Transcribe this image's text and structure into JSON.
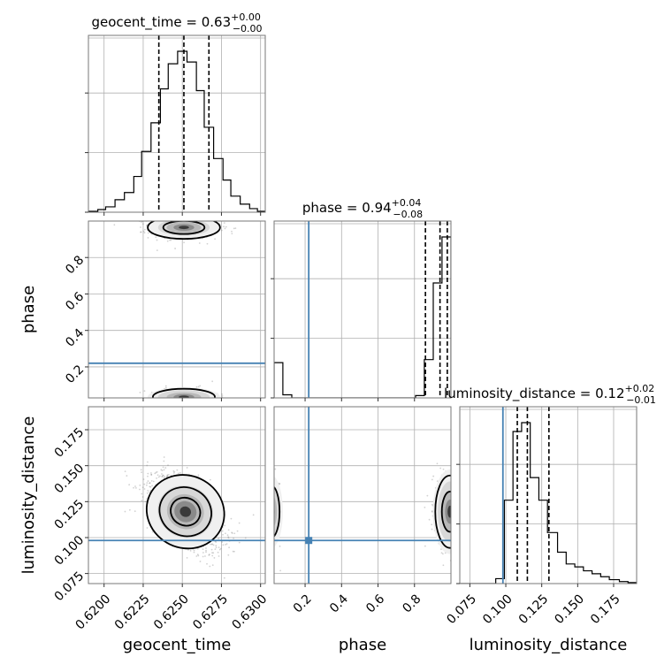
{
  "colors": {
    "truth": "#4682b4",
    "hist": "#000000",
    "quantile": "#000000",
    "points": "#7f7f7f",
    "grid": "#b0b0b0"
  },
  "chart_data": {
    "type": "corner",
    "parameters": [
      "geocent_time",
      "phase",
      "luminosity_distance"
    ],
    "titles": {
      "geocent_time": {
        "prefix": "geocent_time = 0.63",
        "plus": "+0.00",
        "minus": "−0.00"
      },
      "phase": {
        "prefix": "phase = 0.94",
        "plus": "+0.04",
        "minus": "−0.08"
      },
      "luminosity_distance": {
        "prefix": "luminosity_distance = 0.12",
        "plus": "+0.02",
        "minus": "−0.01"
      }
    },
    "axis_labels": {
      "geocent_time": "geocent_time",
      "phase": "phase",
      "luminosity_distance": "luminosity_distance"
    },
    "ranges": {
      "geocent_time": [
        0.619,
        0.6303
      ],
      "phase": [
        0.03,
        1.0
      ],
      "luminosity_distance": [
        0.068,
        0.191
      ]
    },
    "ticks": {
      "geocent_time": [
        0.62,
        0.6225,
        0.625,
        0.6275,
        0.63
      ],
      "phase": [
        0.2,
        0.4,
        0.6,
        0.8
      ],
      "luminosity_distance": [
        0.075,
        0.1,
        0.125,
        0.15,
        0.175
      ]
    },
    "tick_labels": {
      "geocent_time": [
        "0.6200",
        "0.6225",
        "0.6250",
        "0.6275",
        "0.6300"
      ],
      "phase": [
        "0.2",
        "0.4",
        "0.6",
        "0.8"
      ],
      "luminosity_distance": [
        "0.075",
        "0.100",
        "0.125",
        "0.150",
        "0.175"
      ]
    },
    "truths": {
      "phase": 0.22,
      "luminosity_distance": 0.098
    },
    "quantiles": {
      "geocent_time": [
        0.6235,
        0.6251,
        0.6267
      ],
      "phase": [
        0.86,
        0.94,
        0.98
      ],
      "luminosity_distance": [
        0.108,
        0.115,
        0.13
      ]
    },
    "histograms": {
      "geocent_time": {
        "edges": [
          0.619,
          0.6196,
          0.6201,
          0.6207,
          0.6213,
          0.6219,
          0.6224,
          0.623,
          0.6236,
          0.6241,
          0.6247,
          0.6253,
          0.6259,
          0.6264,
          0.627,
          0.6276,
          0.6281,
          0.6287,
          0.6293,
          0.6298,
          0.6303
        ],
        "counts": [
          1,
          3,
          6,
          14,
          22,
          40,
          68,
          100,
          138,
          166,
          180,
          168,
          136,
          95,
          60,
          36,
          18,
          9,
          4,
          1
        ]
      },
      "phase": {
        "edges": [
          0.03,
          0.078,
          0.127,
          0.175,
          0.224,
          0.272,
          0.321,
          0.369,
          0.418,
          0.466,
          0.515,
          0.563,
          0.612,
          0.66,
          0.709,
          0.757,
          0.806,
          0.854,
          0.903,
          0.951,
          1.0
        ],
        "counts": [
          46,
          4,
          0,
          0,
          0,
          0,
          0,
          0,
          0,
          0,
          0,
          0,
          0,
          0,
          0,
          0,
          3,
          50,
          150,
          210
        ]
      },
      "luminosity_distance": {
        "edges": [
          0.068,
          0.074,
          0.08,
          0.087,
          0.093,
          0.099,
          0.105,
          0.111,
          0.117,
          0.123,
          0.129,
          0.136,
          0.142,
          0.148,
          0.154,
          0.16,
          0.166,
          0.172,
          0.179,
          0.185,
          0.191
        ],
        "counts": [
          0,
          0,
          0,
          0,
          5,
          85,
          155,
          164,
          108,
          85,
          52,
          32,
          20,
          17,
          13,
          10,
          7,
          4,
          2,
          1
        ]
      }
    }
  }
}
